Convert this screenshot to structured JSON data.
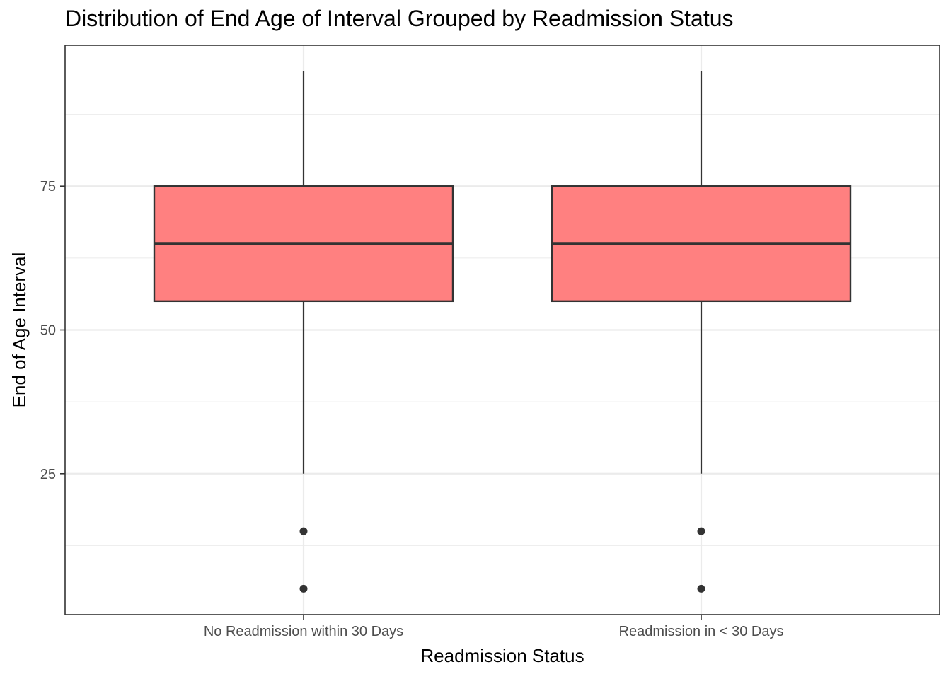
{
  "chart_data": {
    "type": "box",
    "title": "Distribution of End Age of Interval Grouped by Readmission Status",
    "xlabel": "Readmission Status",
    "ylabel": "End of Age Interval",
    "categories": [
      "No Readmission within 30 Days",
      "Readmission in < 30 Days"
    ],
    "ylim": [
      0.5,
      99.5
    ],
    "y_ticks": [
      25,
      50,
      75
    ],
    "y_minor_ticks": [
      12.5,
      37.5,
      62.5,
      87.5
    ],
    "grid": true,
    "legend": "none",
    "series": [
      {
        "category": "No Readmission within 30 Days",
        "whisker_low": 25,
        "q1": 55,
        "median": 65,
        "q3": 75,
        "whisker_high": 95,
        "outliers": [
          15,
          5
        ]
      },
      {
        "category": "Readmission in < 30 Days",
        "whisker_low": 25,
        "q1": 55,
        "median": 65,
        "q3": 75,
        "whisker_high": 95,
        "outliers": [
          15,
          5
        ]
      }
    ],
    "colors": {
      "box_fill": "#ff8080",
      "box_outline": "#333333",
      "grid": "#ebebeb",
      "panel_border": "#333333",
      "text": "#4d4d4d"
    }
  }
}
